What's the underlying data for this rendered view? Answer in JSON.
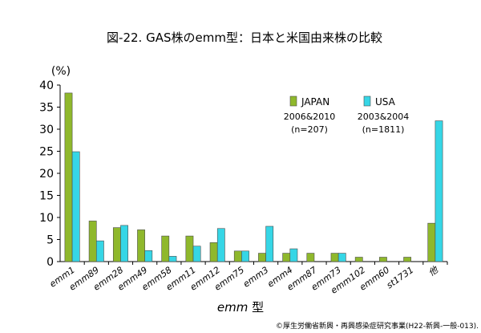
{
  "chart_data": {
    "type": "bar",
    "title": "図-22. GAS株のemm型：日本と米国由来株の比較",
    "ylabel": "(%)",
    "xlabel": "emm 型",
    "ylim": [
      0,
      40
    ],
    "yticks": [
      0,
      5,
      10,
      15,
      20,
      25,
      30,
      35,
      40
    ],
    "categories": [
      "emm1",
      "emm89",
      "emm28",
      "emm49",
      "emm58",
      "emm11",
      "emm12",
      "emm75",
      "emm3",
      "emm4",
      "emm87",
      "emm73",
      "emm102",
      "emm60",
      "st1731",
      "他"
    ],
    "series": [
      {
        "name": "JAPAN",
        "period": "2006&2010",
        "n": "(n=207)",
        "color": "#8fb82c",
        "values": [
          38.2,
          9.2,
          7.7,
          7.2,
          5.8,
          5.8,
          4.3,
          2.4,
          1.9,
          1.9,
          1.9,
          1.9,
          1.0,
          1.0,
          1.0,
          8.7
        ]
      },
      {
        "name": "USA",
        "period": "2003&2004",
        "n": "(n=1811)",
        "color": "#36d6e6",
        "values": [
          24.9,
          4.7,
          8.2,
          2.5,
          1.2,
          3.5,
          7.5,
          2.4,
          8.0,
          2.9,
          0,
          1.9,
          0,
          0,
          0,
          31.9
        ]
      }
    ],
    "grid": false,
    "legend_position": "top-right"
  },
  "footer": "©厚生労働省新興・再興感染症研究事業(H22-新興-一般-013)."
}
